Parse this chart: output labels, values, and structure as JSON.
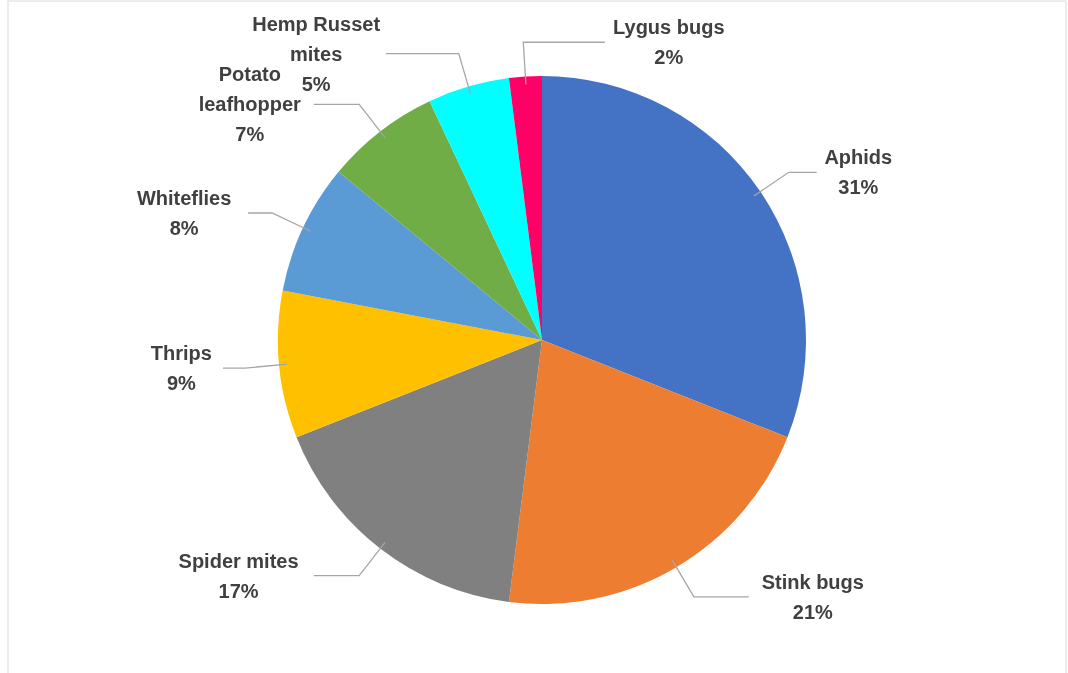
{
  "chart_data": {
    "type": "pie",
    "categories": [
      "Aphids",
      "Stink bugs",
      "Spider mites",
      "Thrips",
      "Whiteflies",
      "Potato leafhopper",
      "Hemp Russet mites",
      "Lygus bugs"
    ],
    "values": [
      31,
      21,
      17,
      9,
      8,
      7,
      5,
      2
    ],
    "value_labels": [
      "31%",
      "21%",
      "17%",
      "9%",
      "8%",
      "7%",
      "5%",
      "2%"
    ],
    "colors": [
      "#4472c4",
      "#ed7d31",
      "#808080",
      "#ffc000",
      "#5b9bd5",
      "#70ad47",
      "#00ffff",
      "#ff0066"
    ],
    "legend": false
  }
}
